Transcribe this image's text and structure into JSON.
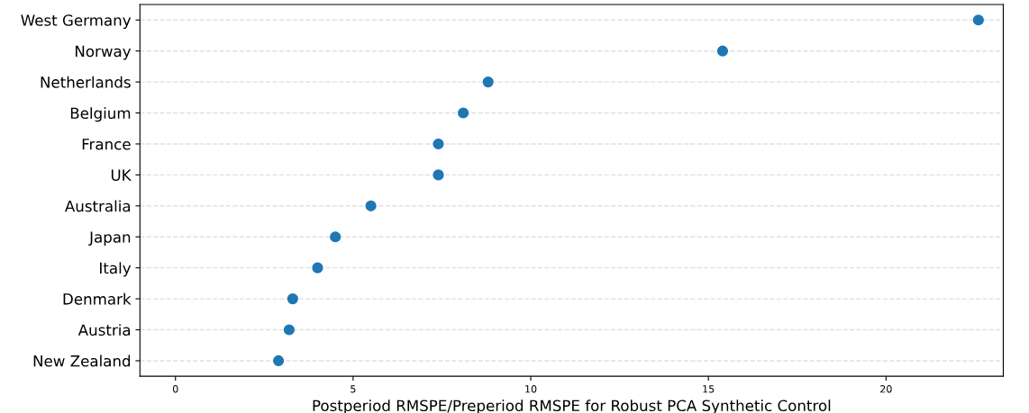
{
  "chart_data": {
    "type": "scatter",
    "orientation": "horizontal",
    "xlabel": "Postperiod RMSPE/Preperiod RMSPE for Robust PCA Synthetic Control",
    "categories": [
      "West Germany",
      "Norway",
      "Netherlands",
      "Belgium",
      "France",
      "UK",
      "Australia",
      "Japan",
      "Italy",
      "Denmark",
      "Austria",
      "New Zealand"
    ],
    "values": [
      22.6,
      15.4,
      8.8,
      8.1,
      7.4,
      7.4,
      5.5,
      4.5,
      4.0,
      3.3,
      3.2,
      2.9
    ],
    "color": "#1f77b4",
    "marker": "circle",
    "xlim": [
      -1.0,
      23.3
    ],
    "xticks": [
      0,
      5,
      10,
      15,
      20
    ],
    "grid": "y",
    "legend": false
  }
}
